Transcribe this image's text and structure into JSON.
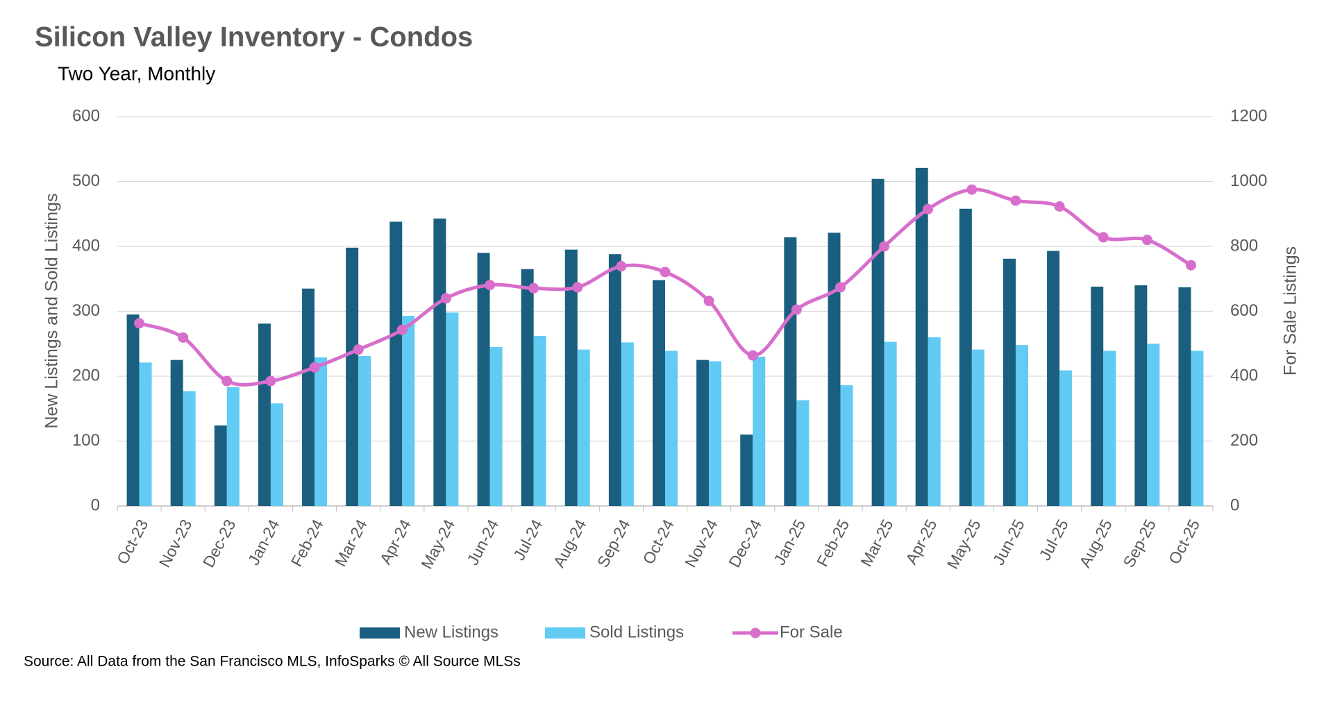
{
  "chart_data": {
    "type": "bar-line",
    "title": "Silicon Valley Inventory - Condos",
    "subtitle": "Two Year, Monthly",
    "ylabel": "New Listings and Sold Listings",
    "y2label": "For Sale Listings",
    "source": "Source: All Data from the San Francisco MLS, InfoSparks © All Source MLSs",
    "categories": [
      "Oct-23",
      "Nov-23",
      "Dec-23",
      "Jan-24",
      "Feb-24",
      "Mar-24",
      "Apr-24",
      "May-24",
      "Jun-24",
      "Jul-24",
      "Aug-24",
      "Sep-24",
      "Oct-24",
      "Nov-24",
      "Dec-24",
      "Jan-25",
      "Feb-25",
      "Mar-25",
      "Apr-25",
      "May-25",
      "Jun-25",
      "Jul-25",
      "Aug-25",
      "Sep-25",
      "Oct-25"
    ],
    "series": [
      {
        "name": "New Listings",
        "type": "bar",
        "color": "#1a5f7f",
        "values": [
          295,
          225,
          124,
          281,
          335,
          398,
          438,
          443,
          390,
          365,
          395,
          388,
          348,
          225,
          110,
          414,
          421,
          504,
          521,
          458,
          381,
          393,
          338,
          340,
          337
        ]
      },
      {
        "name": "Sold Listings",
        "type": "bar",
        "color": "#61cbf3",
        "values": [
          221,
          177,
          183,
          158,
          229,
          231,
          293,
          298,
          245,
          262,
          241,
          252,
          239,
          223,
          230,
          163,
          186,
          253,
          260,
          241,
          248,
          209,
          239,
          250,
          239
        ]
      },
      {
        "name": "For Sale",
        "type": "line",
        "axis": "y2",
        "color": "#d86ecc",
        "values": [
          563,
          519,
          385,
          385,
          427,
          482,
          543,
          640,
          681,
          671,
          674,
          739,
          721,
          632,
          464,
          605,
          674,
          800,
          915,
          975,
          941,
          923,
          828,
          820,
          742
        ]
      }
    ],
    "ylim": [
      0,
      600
    ],
    "yticks": [
      0,
      100,
      200,
      300,
      400,
      500,
      600
    ],
    "y2lim": [
      0,
      1200
    ],
    "y2ticks": [
      0,
      200,
      400,
      600,
      800,
      1000,
      1200
    ],
    "grid": true,
    "legend": "bottom"
  }
}
